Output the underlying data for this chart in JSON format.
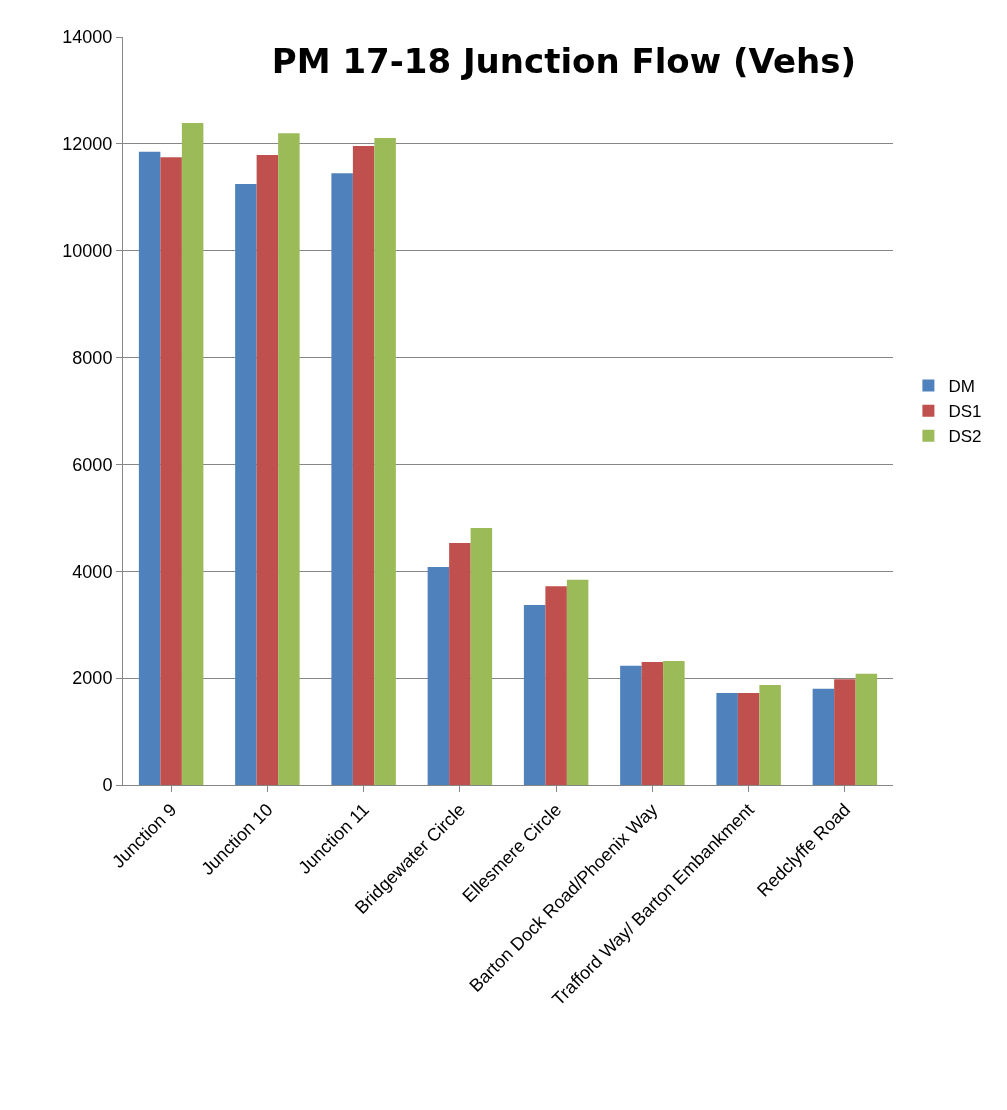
{
  "chart_data": {
    "type": "bar",
    "title": "PM 17-18 Junction Flow (Vehs)",
    "categories": [
      "Junction 9",
      "Junction 10",
      "Junction 11",
      "Bridgewater Circle",
      "Ellesmere Circle",
      "Barton Dock Road/Phoenix Way",
      "Trafford Way/ Barton Embankment",
      "Redclyffe Road"
    ],
    "series": [
      {
        "name": "DM",
        "color": "#4f81bd",
        "values": [
          11850,
          11250,
          11450,
          4080,
          3370,
          2230,
          1720,
          1800
        ]
      },
      {
        "name": "DS1",
        "color": "#c0504d",
        "values": [
          11750,
          11790,
          11960,
          4530,
          3720,
          2300,
          1720,
          1980
        ]
      },
      {
        "name": "DS2",
        "color": "#9bbb59",
        "values": [
          12390,
          12200,
          12110,
          4810,
          3840,
          2320,
          1870,
          2080
        ]
      }
    ],
    "ylim": [
      0,
      14000
    ],
    "yticks": [
      0,
      2000,
      4000,
      6000,
      8000,
      10000,
      12000,
      14000
    ],
    "grid": "y",
    "legend": "right"
  }
}
